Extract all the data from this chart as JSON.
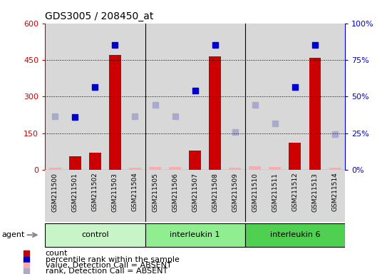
{
  "title": "GDS3005 / 208450_at",
  "samples": [
    "GSM211500",
    "GSM211501",
    "GSM211502",
    "GSM211503",
    "GSM211504",
    "GSM211505",
    "GSM211506",
    "GSM211507",
    "GSM211508",
    "GSM211509",
    "GSM211510",
    "GSM211511",
    "GSM211512",
    "GSM211513",
    "GSM211514"
  ],
  "groups": [
    {
      "name": "control",
      "start": 0,
      "end": 4,
      "color": "#c8f5c8"
    },
    {
      "name": "interleukin 1",
      "start": 5,
      "end": 9,
      "color": "#90ee90"
    },
    {
      "name": "interleukin 6",
      "start": 10,
      "end": 14,
      "color": "#50d050"
    }
  ],
  "counts": [
    10,
    55,
    70,
    470,
    8,
    12,
    12,
    80,
    465,
    8,
    15,
    12,
    110,
    460,
    8
  ],
  "counts_absent": [
    true,
    false,
    false,
    false,
    true,
    true,
    true,
    false,
    false,
    true,
    true,
    true,
    false,
    false,
    true
  ],
  "ranks": [
    null,
    215,
    340,
    510,
    null,
    null,
    null,
    325,
    510,
    null,
    null,
    null,
    340,
    510,
    null
  ],
  "ranks_absent": [
    220,
    null,
    null,
    null,
    220,
    265,
    220,
    null,
    null,
    155,
    265,
    190,
    null,
    null,
    145
  ],
  "ylim_left": [
    0,
    600
  ],
  "yticks_left": [
    0,
    150,
    300,
    450,
    600
  ],
  "ytick_labels_left": [
    "0",
    "150",
    "300",
    "450",
    "600"
  ],
  "ytick_labels_right": [
    "0%",
    "25%",
    "50%",
    "75%",
    "100%"
  ],
  "bar_color_present": "#cc0000",
  "bar_color_absent": "#ffaaaa",
  "dot_color_present": "#0000cc",
  "dot_color_absent": "#aaaacc",
  "axis_label_color_left": "#cc0000",
  "axis_label_color_right": "#0000cc",
  "legend_items": [
    {
      "color": "#cc0000",
      "label": "count"
    },
    {
      "color": "#0000cc",
      "label": "percentile rank within the sample"
    },
    {
      "color": "#ffaaaa",
      "label": "value, Detection Call = ABSENT"
    },
    {
      "color": "#aaaacc",
      "label": "rank, Detection Call = ABSENT"
    }
  ],
  "col_bg_color": "#d8d8d8",
  "plot_bg_color": "#ffffff"
}
